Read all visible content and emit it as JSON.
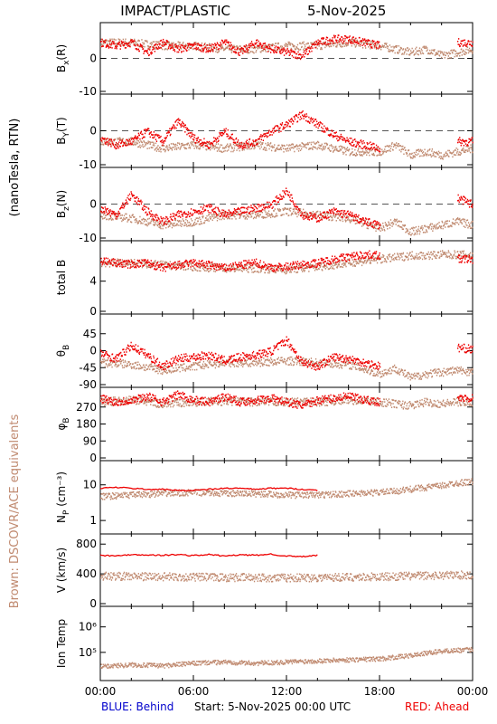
{
  "chart_data": {
    "type": "scatter",
    "title": "IMPACT/PLASTIC",
    "date": "5-Nov-2025",
    "footer": {
      "left": "BLUE: Behind",
      "center": "Start:   5-Nov-2025 00:00 UTC",
      "right": "RED: Ahead"
    },
    "side_labels": {
      "units": "(nanoTesla, RTN)",
      "brown": "Brown: DSCOVR/ACE equivalents"
    },
    "x_ticks": [
      "00:00",
      "06:00",
      "12:00",
      "18:00",
      "00:00"
    ],
    "x_range_hours": [
      0,
      24
    ],
    "colors": {
      "ahead": "#ee0000",
      "behind": "#0000cc",
      "brown": "#c08a70",
      "axis": "#000000"
    },
    "panels": [
      {
        "id": "bx",
        "ylabel": "B",
        "ysub": "x",
        "ysuffix": "(R)",
        "ylim": [
          -10,
          10
        ],
        "yticks": [
          0,
          -10
        ],
        "zero_line": true,
        "ahead": {
          "x": [
            0,
            1,
            2,
            3,
            4,
            5,
            6,
            7,
            8,
            9,
            10,
            11,
            12,
            13,
            14,
            15,
            16,
            17,
            18,
            21.5,
            23,
            24
          ],
          "y": [
            5,
            4,
            5,
            2,
            5,
            3,
            4,
            3,
            5,
            2,
            5,
            3,
            2,
            1,
            5,
            6,
            6,
            5,
            4,
            null,
            5,
            5
          ]
        },
        "brown": {
          "x": [
            0,
            2,
            4,
            6,
            8,
            10,
            12,
            14,
            16,
            18,
            19,
            20,
            21,
            22,
            23,
            24
          ],
          "y": [
            5,
            5,
            4,
            4,
            3,
            3,
            4,
            4,
            5,
            4,
            3,
            2,
            3,
            1,
            2,
            3
          ]
        }
      },
      {
        "id": "by",
        "ylabel": "B",
        "ysub": "Y",
        "ysuffix": "(T)",
        "ylim": [
          -10,
          10
        ],
        "yticks": [
          0,
          -10
        ],
        "zero_line": true,
        "ahead": {
          "x": [
            0,
            1,
            2,
            3,
            4,
            5,
            6,
            7,
            8,
            9,
            10,
            11,
            12,
            13,
            14,
            15,
            16,
            17,
            18,
            21.5,
            23,
            24
          ],
          "y": [
            -2,
            -4,
            -3,
            0,
            -3,
            3,
            -2,
            -4,
            0,
            -4,
            -3,
            0,
            2,
            5,
            2,
            -1,
            -3,
            -4,
            -5,
            null,
            -3,
            -3
          ]
        },
        "brown": {
          "x": [
            0,
            2,
            4,
            6,
            8,
            10,
            12,
            14,
            16,
            18,
            19,
            20,
            21,
            22,
            23,
            24
          ],
          "y": [
            -3,
            -3,
            -5,
            -4,
            -5,
            -4,
            -5,
            -4,
            -6,
            -6,
            -4,
            -7,
            -6,
            -7,
            -6,
            -5
          ]
        }
      },
      {
        "id": "bz",
        "ylabel": "B",
        "ysub": "z",
        "ysuffix": "(N)",
        "ylim": [
          -10,
          10
        ],
        "yticks": [
          0,
          -10
        ],
        "zero_line": true,
        "ahead": {
          "x": [
            0,
            1,
            2,
            3,
            4,
            5,
            6,
            7,
            8,
            9,
            10,
            11,
            12,
            13,
            14,
            15,
            16,
            17,
            18,
            21.5,
            23,
            24
          ],
          "y": [
            -1,
            -3,
            3,
            -2,
            -5,
            -3,
            -2,
            -1,
            -3,
            -2,
            -1,
            0,
            4,
            -3,
            -4,
            -2,
            -3,
            -5,
            -6,
            null,
            2,
            0
          ]
        },
        "brown": {
          "x": [
            0,
            2,
            4,
            6,
            8,
            10,
            12,
            14,
            16,
            18,
            19,
            20,
            21,
            22,
            23,
            24
          ],
          "y": [
            -3,
            -4,
            -6,
            -5,
            -3,
            -3,
            -2,
            -3,
            -4,
            -7,
            -5,
            -8,
            -7,
            -6,
            -5,
            -6
          ]
        }
      },
      {
        "id": "btot",
        "ylabel": "total B",
        "ysub": "",
        "ysuffix": "",
        "ylim": [
          0,
          9
        ],
        "yticks": [
          0,
          4
        ],
        "zero_line": false,
        "ahead": {
          "x": [
            0,
            1,
            2,
            3,
            4,
            5,
            6,
            7,
            8,
            9,
            10,
            11,
            12,
            13,
            14,
            15,
            16,
            17,
            18,
            21.5,
            23,
            24
          ],
          "y": [
            6.8,
            6.5,
            6.3,
            6.5,
            5.8,
            6.2,
            6.5,
            6.2,
            5.8,
            6.2,
            6.5,
            5.9,
            6.0,
            6.3,
            6.5,
            7.0,
            7.3,
            7.6,
            7.5,
            null,
            7.0,
            7.0
          ]
        },
        "brown": {
          "x": [
            0,
            2,
            4,
            6,
            8,
            10,
            12,
            14,
            16,
            18,
            19,
            20,
            21,
            22,
            23,
            24
          ],
          "y": [
            6.5,
            6.5,
            6.2,
            6.0,
            5.8,
            5.8,
            5.6,
            6.0,
            6.5,
            7.0,
            7.2,
            7.5,
            7.5,
            7.6,
            7.6,
            7.5
          ]
        }
      },
      {
        "id": "theta",
        "ylabel": "θ",
        "ysub": "B",
        "ysuffix": "",
        "ylim": [
          -90,
          90
        ],
        "yticks": [
          45,
          0,
          -45,
          -90
        ],
        "zero_line": false,
        "ahead": {
          "x": [
            0,
            1,
            2,
            3,
            4,
            5,
            6,
            7,
            8,
            9,
            10,
            11,
            12,
            13,
            14,
            15,
            16,
            17,
            18,
            21.5,
            23,
            24
          ],
          "y": [
            -5,
            -20,
            15,
            -10,
            -40,
            -20,
            -15,
            -10,
            -25,
            -15,
            -10,
            0,
            30,
            -30,
            -40,
            -15,
            -20,
            -30,
            -40,
            null,
            10,
            5
          ]
        },
        "brown": {
          "x": [
            0,
            2,
            4,
            6,
            8,
            10,
            12,
            14,
            16,
            18,
            19,
            20,
            21,
            22,
            23,
            24
          ],
          "y": [
            -30,
            -35,
            -50,
            -40,
            -30,
            -30,
            -25,
            -30,
            -35,
            -60,
            -45,
            -70,
            -60,
            -55,
            -50,
            -55
          ]
        }
      },
      {
        "id": "phi",
        "ylabel": "φ",
        "ysub": "B",
        "ysuffix": "",
        "ylim": [
          0,
          360
        ],
        "yticks": [
          270,
          180,
          90,
          0
        ],
        "zero_line": false,
        "ahead": {
          "x": [
            0,
            1,
            2,
            3,
            4,
            5,
            6,
            7,
            8,
            9,
            10,
            11,
            12,
            13,
            14,
            15,
            16,
            17,
            18,
            21.5,
            23,
            24
          ],
          "y": [
            320,
            300,
            310,
            330,
            300,
            340,
            310,
            300,
            330,
            300,
            310,
            320,
            300,
            280,
            310,
            320,
            330,
            310,
            300,
            null,
            320,
            320
          ]
        },
        "brown": {
          "x": [
            0,
            2,
            4,
            6,
            8,
            10,
            12,
            14,
            16,
            18,
            19,
            20,
            21,
            22,
            23,
            24
          ],
          "y": [
            300,
            310,
            290,
            300,
            305,
            300,
            300,
            300,
            310,
            300,
            290,
            280,
            300,
            290,
            300,
            300
          ]
        }
      },
      {
        "id": "np",
        "ylabel": "N",
        "ysub": "P",
        "ysuffix": " (cm⁻³)",
        "log": true,
        "ylim": [
          0.5,
          40
        ],
        "yticks": [
          1,
          10
        ],
        "zero_line": false,
        "ahead": {
          "x": [
            0,
            1,
            2,
            3,
            4,
            5,
            6,
            7,
            8,
            9,
            10,
            11,
            12,
            13,
            14
          ],
          "y": [
            8,
            8.5,
            8,
            7.5,
            7.5,
            7,
            7,
            7.5,
            8,
            8,
            7.5,
            8,
            8,
            7.5,
            7
          ]
        },
        "brown": {
          "x": [
            0,
            2,
            4,
            6,
            8,
            10,
            12,
            14,
            16,
            18,
            19,
            20,
            21,
            22,
            23,
            24
          ],
          "y": [
            5,
            5.5,
            6,
            6.5,
            6,
            6,
            5.5,
            5.5,
            6,
            6.5,
            7,
            8,
            9,
            10,
            12,
            13
          ]
        }
      },
      {
        "id": "v",
        "ylabel": "V (km/s)",
        "ysub": "",
        "ysuffix": "",
        "ylim": [
          0,
          900
        ],
        "yticks": [
          800,
          400,
          0
        ],
        "zero_line": false,
        "ahead": {
          "x": [
            0,
            1,
            2,
            3,
            4,
            5,
            6,
            7,
            8,
            9,
            10,
            11,
            12,
            13,
            14
          ],
          "y": [
            650,
            640,
            660,
            655,
            650,
            660,
            645,
            660,
            640,
            655,
            650,
            665,
            640,
            630,
            650
          ]
        },
        "brown": {
          "x": [
            0,
            2,
            4,
            6,
            8,
            10,
            12,
            14,
            16,
            18,
            19,
            20,
            21,
            22,
            23,
            24
          ],
          "y": [
            380,
            375,
            370,
            365,
            360,
            360,
            355,
            360,
            365,
            370,
            375,
            380,
            385,
            390,
            395,
            390
          ]
        }
      },
      {
        "id": "temp",
        "ylabel": "Ion Temp",
        "ysub": "",
        "ysuffix": "",
        "log": true,
        "ylim": [
          10000,
          5000000
        ],
        "yticks": [
          1000000,
          100000
        ],
        "ytick_labels": [
          "10⁶",
          "10⁵"
        ],
        "zero_line": false,
        "ahead": {
          "x": [],
          "y": []
        },
        "brown": {
          "x": [
            0,
            2,
            4,
            6,
            8,
            10,
            12,
            14,
            16,
            18,
            19,
            20,
            21,
            22,
            23,
            24
          ],
          "y": [
            30000,
            35000,
            32000,
            40000,
            45000,
            40000,
            45000,
            50000,
            55000,
            60000,
            70000,
            80000,
            100000,
            120000,
            130000,
            140000
          ]
        }
      }
    ]
  }
}
